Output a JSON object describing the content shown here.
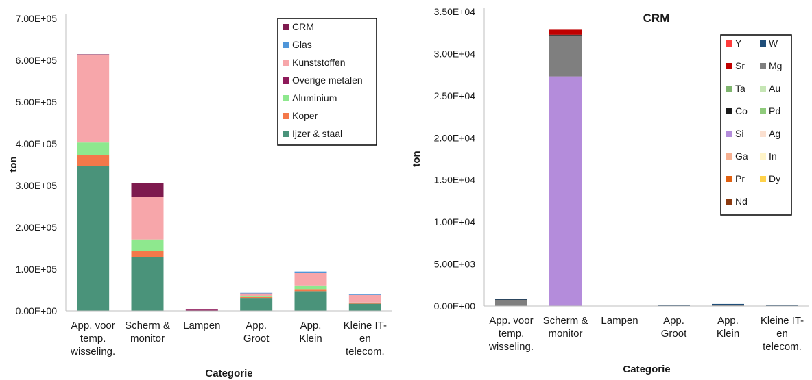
{
  "chart_data": [
    {
      "type": "bar",
      "stacked": true,
      "title": "",
      "xlabel": "Categorie",
      "ylabel": "ton",
      "ylim": [
        0,
        700000
      ],
      "yticks": [
        "0.00E+00",
        "1.00E+05",
        "2.00E+05",
        "3.00E+05",
        "4.00E+05",
        "5.00E+05",
        "6.00E+05",
        "7.00E+05"
      ],
      "categories": [
        [
          "App. voor",
          "temp.",
          "wisseling."
        ],
        [
          "Scherm &",
          "monitor"
        ],
        [
          "Lampen"
        ],
        [
          "App.",
          "Groot"
        ],
        [
          "App.",
          "Klein"
        ],
        [
          "Kleine IT-",
          "en",
          "telecom."
        ]
      ],
      "legend_position": "top-right",
      "series": [
        {
          "name": "Ijzer & staal",
          "color": "#4A937A",
          "values": [
            347000,
            128000,
            0,
            31000,
            47000,
            17000
          ]
        },
        {
          "name": "Koper",
          "color": "#F4784A",
          "values": [
            26000,
            15000,
            0,
            2000,
            5000,
            1500
          ]
        },
        {
          "name": "Aluminium",
          "color": "#8EE88E",
          "values": [
            30000,
            28000,
            0,
            2000,
            9000,
            1500
          ]
        },
        {
          "name": "Overige metalen",
          "color": "#8E1A5A",
          "values": [
            0,
            0,
            3000,
            0,
            0,
            0
          ]
        },
        {
          "name": "Kunststoffen",
          "color": "#F7A6AA",
          "values": [
            210000,
            102000,
            0,
            7000,
            30000,
            18000
          ]
        },
        {
          "name": "Glas",
          "color": "#4F96D9",
          "values": [
            0,
            0,
            0,
            1000,
            3000,
            1500
          ]
        },
        {
          "name": "CRM",
          "color": "#7E1A4E",
          "values": [
            1000,
            33000,
            0,
            0,
            0,
            0
          ]
        }
      ]
    },
    {
      "type": "bar",
      "stacked": true,
      "title": "CRM",
      "xlabel": "Categorie",
      "ylabel": "ton",
      "ylim": [
        0,
        35000
      ],
      "yticks": [
        "0.00E+00",
        "5.00E+03",
        "1.00E+04",
        "1.50E+04",
        "2.00E+04",
        "2.50E+04",
        "3.00E+04",
        "3.50E+04"
      ],
      "categories": [
        [
          "App. voor",
          "temp.",
          "wisseling."
        ],
        [
          "Scherm &",
          "monitor"
        ],
        [
          "Lampen"
        ],
        [
          "App.",
          "Groot"
        ],
        [
          "App.",
          "Klein"
        ],
        [
          "Kleine IT-",
          "en",
          "telecom."
        ]
      ],
      "legend_position": "right",
      "legend_order": [
        "Y",
        "W",
        "Sr",
        "Mg",
        "Ta",
        "Au",
        "Co",
        "Pd",
        "Si",
        "Ag",
        "Ga",
        "In",
        "Pr",
        "Dy",
        "Nd"
      ],
      "series": [
        {
          "name": "Si",
          "color": "#B48CDB",
          "values": [
            0,
            27300,
            0,
            0,
            0,
            0
          ]
        },
        {
          "name": "Mg",
          "color": "#7F7F7F",
          "values": [
            750,
            4900,
            0,
            80,
            150,
            80
          ]
        },
        {
          "name": "W",
          "color": "#1F4E79",
          "values": [
            50,
            0,
            0,
            40,
            100,
            40
          ]
        },
        {
          "name": "Co",
          "color": "#1A1A1A",
          "values": [
            50,
            50,
            0,
            0,
            0,
            0
          ]
        },
        {
          "name": "Sr",
          "color": "#C00000",
          "values": [
            0,
            600,
            0,
            0,
            0,
            0
          ]
        },
        {
          "name": "Y",
          "color": "#FF3B3B",
          "values": [
            0,
            0,
            0,
            0,
            0,
            0
          ]
        },
        {
          "name": "Ta",
          "color": "#7FB56E",
          "values": [
            0,
            0,
            0,
            0,
            0,
            0
          ]
        },
        {
          "name": "Au",
          "color": "#C6E6B5",
          "values": [
            0,
            0,
            0,
            0,
            0,
            0
          ]
        },
        {
          "name": "Pd",
          "color": "#8FCB7B",
          "values": [
            0,
            0,
            0,
            0,
            0,
            0
          ]
        },
        {
          "name": "Ag",
          "color": "#FBE0D0",
          "values": [
            0,
            0,
            0,
            0,
            0,
            0
          ]
        },
        {
          "name": "Ga",
          "color": "#F7B090",
          "values": [
            0,
            0,
            0,
            0,
            0,
            0
          ]
        },
        {
          "name": "In",
          "color": "#FFF4C8",
          "values": [
            0,
            0,
            0,
            0,
            0,
            0
          ]
        },
        {
          "name": "Pr",
          "color": "#E06010",
          "values": [
            0,
            0,
            0,
            0,
            0,
            0
          ]
        },
        {
          "name": "Dy",
          "color": "#FFD24A",
          "values": [
            0,
            0,
            0,
            0,
            0,
            0
          ]
        },
        {
          "name": "Nd",
          "color": "#8B3A10",
          "values": [
            0,
            0,
            0,
            0,
            0,
            0
          ]
        }
      ]
    }
  ]
}
